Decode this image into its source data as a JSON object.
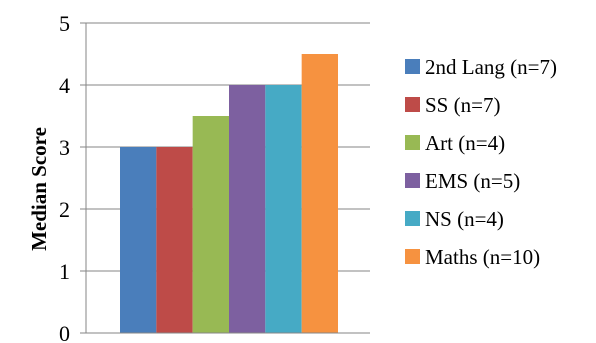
{
  "chart_data": {
    "type": "bar",
    "title": "",
    "xlabel": "",
    "ylabel": "Median Score",
    "ylim": [
      0,
      5
    ],
    "yticks": [
      0,
      1,
      2,
      3,
      4,
      5
    ],
    "grid": true,
    "legend_position": "right",
    "series": [
      {
        "name": "2nd Lang (n=7)",
        "values": [
          3
        ],
        "color": "#4a7ebb"
      },
      {
        "name": "SS (n=7)",
        "values": [
          3
        ],
        "color": "#be4b48"
      },
      {
        "name": "Art (n=4)",
        "values": [
          3.5
        ],
        "color": "#98b954"
      },
      {
        "name": "EMS (n=5)",
        "values": [
          4
        ],
        "color": "#7d60a0"
      },
      {
        "name": "NS (n=4)",
        "values": [
          4
        ],
        "color": "#46aac5"
      },
      {
        "name": "Maths (n=10)",
        "values": [
          4.5
        ],
        "color": "#f69240"
      }
    ]
  }
}
